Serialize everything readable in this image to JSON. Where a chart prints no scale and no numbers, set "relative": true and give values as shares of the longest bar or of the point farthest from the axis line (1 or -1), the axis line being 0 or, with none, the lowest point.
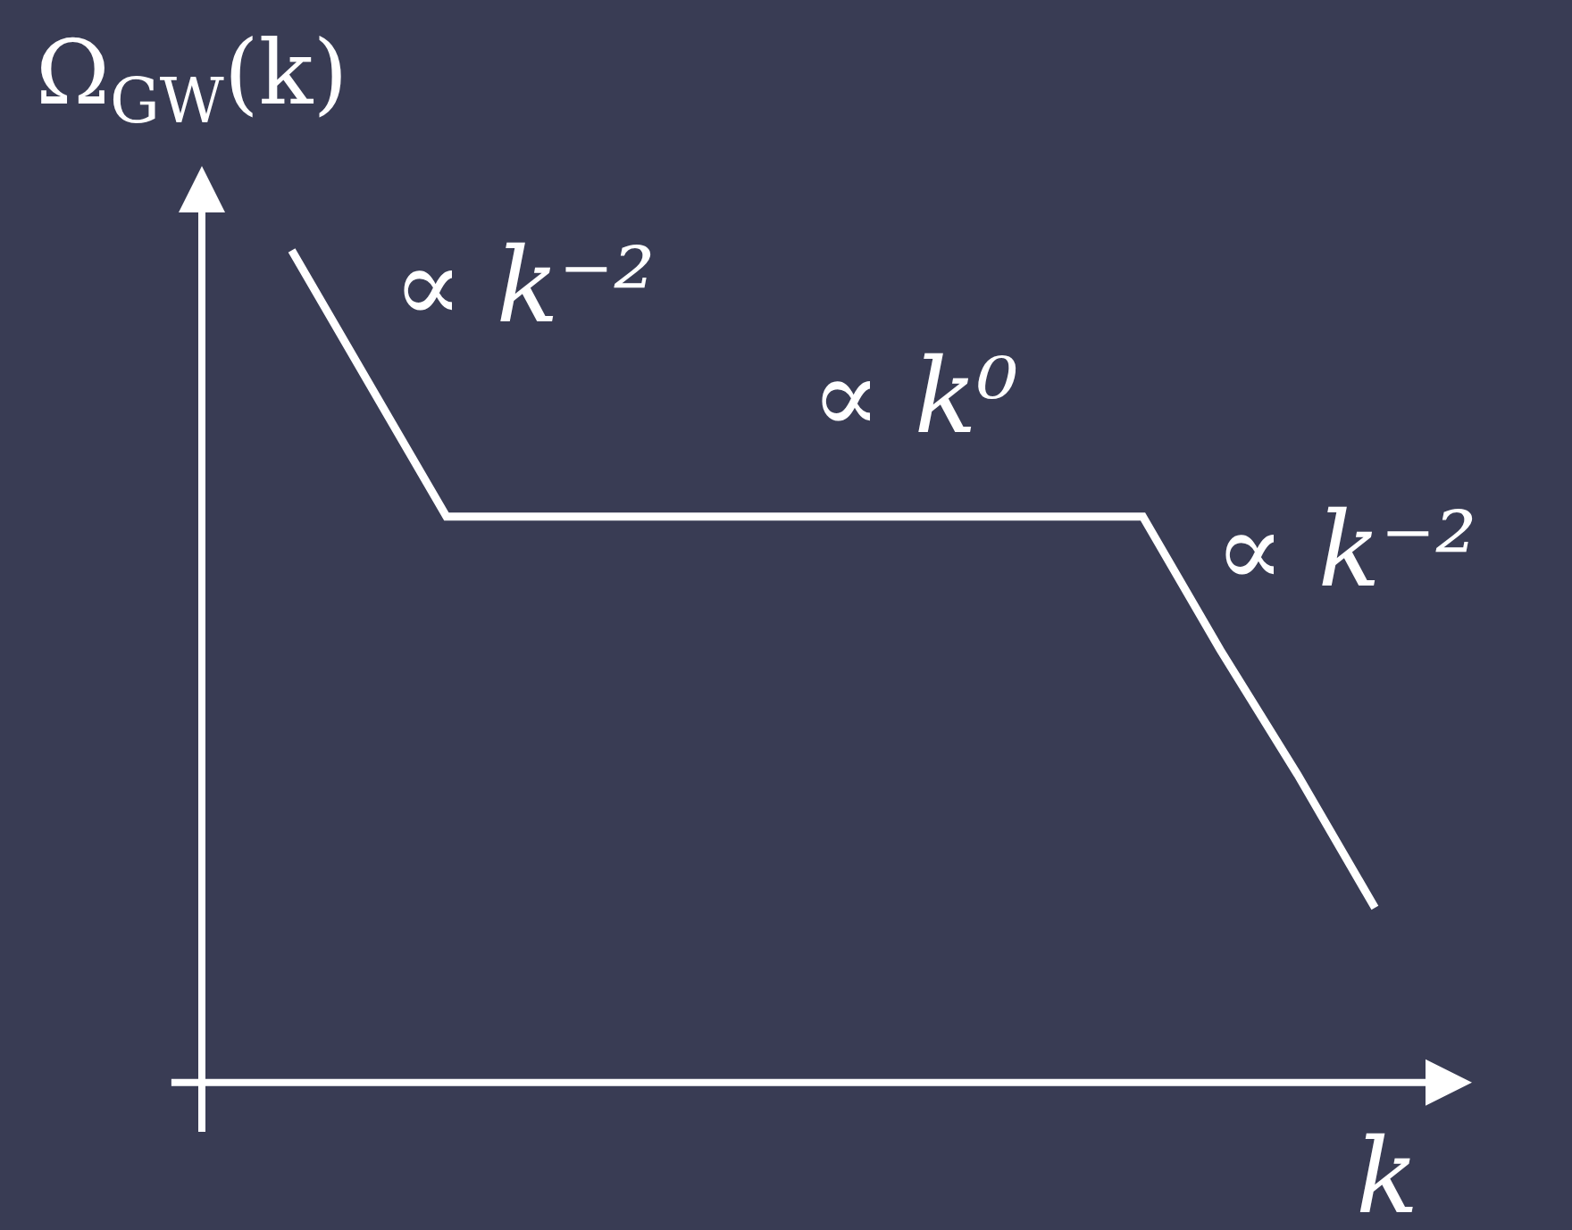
{
  "chart_data": {
    "type": "line",
    "relative": true,
    "ylabel": "Ω$_{GW}$(k)",
    "xlabel": "k",
    "annotations": [
      "∝ k⁻²",
      "∝ k⁰",
      "∝ k⁻²"
    ],
    "categories": [
      null,
      null,
      null,
      null,
      null,
      null,
      null,
      null,
      null,
      null,
      null,
      null,
      null,
      null,
      null
    ],
    "color": "#ffffff",
    "values": [
      1,
      0.84,
      0.68,
      0.68,
      0.68,
      0.68,
      0.68,
      0.68,
      0.68,
      0.68,
      0.68,
      0.68,
      0.52,
      0.37,
      0.21
    ]
  }
}
